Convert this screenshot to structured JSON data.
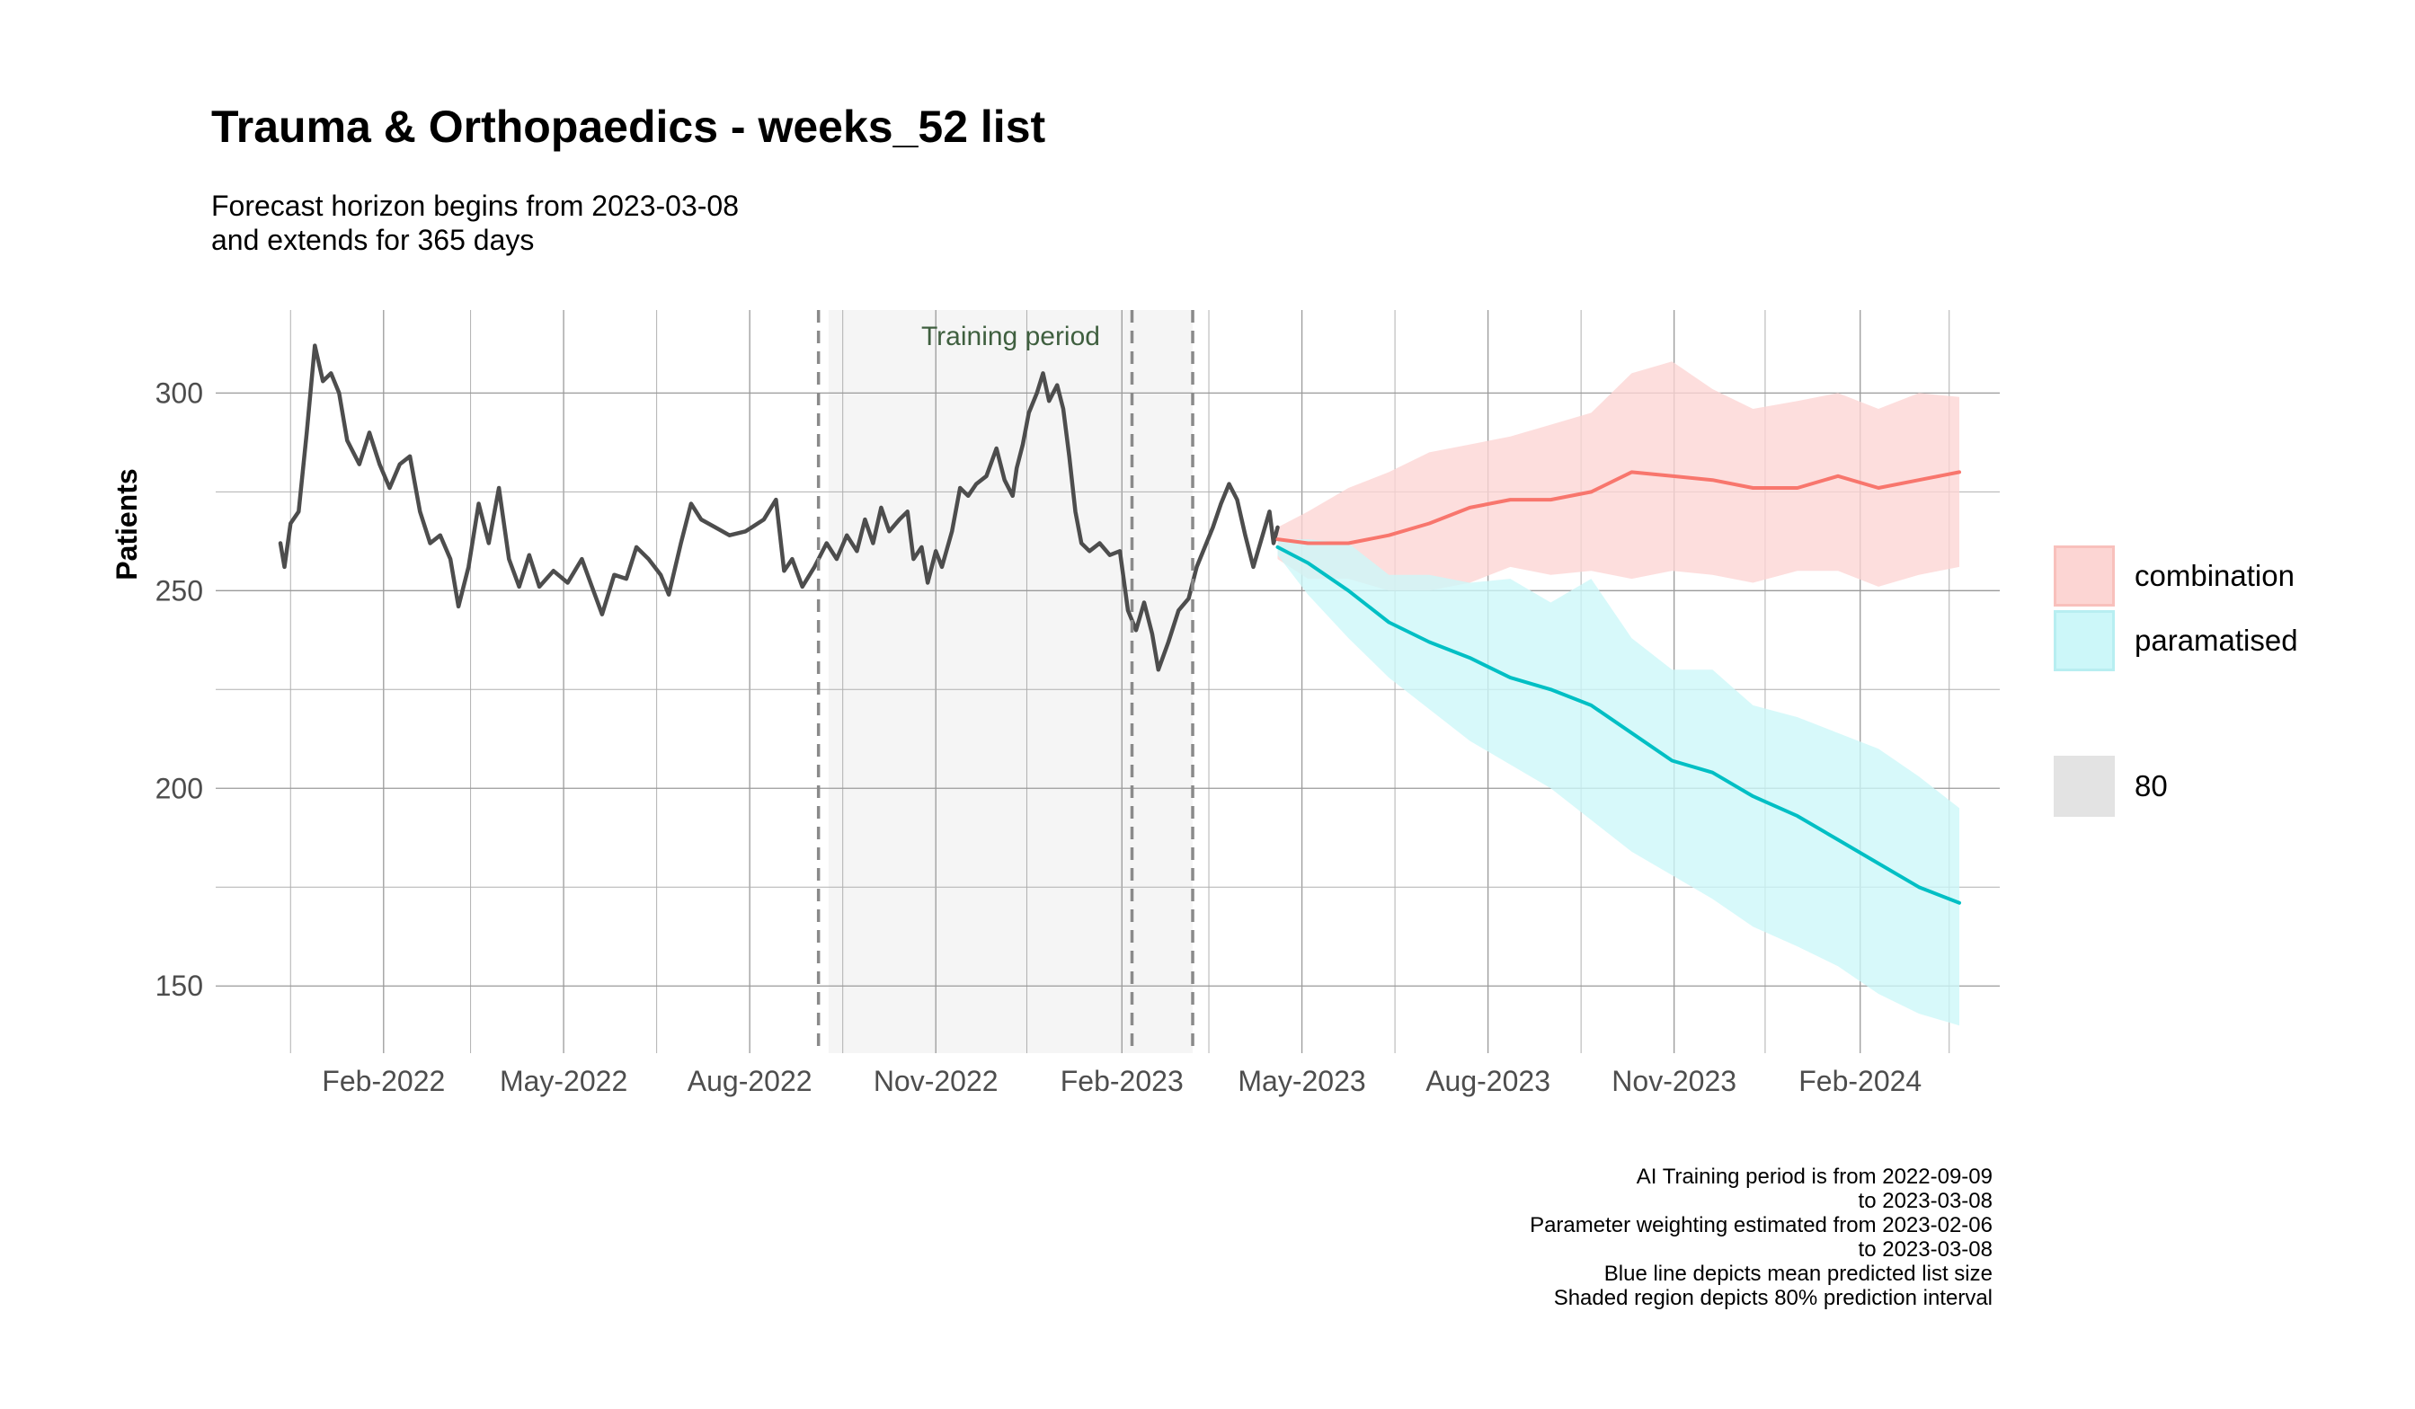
{
  "chart_data": {
    "type": "line",
    "title": "Trauma & Orthopaedics - weeks_52 list",
    "subtitle_lines": [
      "Forecast horizon begins from 2023-03-08",
      "and extends for 365 days"
    ],
    "xlabel": "",
    "ylabel": "Patients",
    "x_axis_type": "date",
    "xlim": [
      "2021-11-10",
      "2024-04-10"
    ],
    "ylim": [
      133,
      321
    ],
    "grid": true,
    "x_ticks": [
      {
        "date": "2022-02-01",
        "label": "Feb-2022"
      },
      {
        "date": "2022-05-01",
        "label": "May-2022"
      },
      {
        "date": "2022-08-01",
        "label": "Aug-2022"
      },
      {
        "date": "2022-11-01",
        "label": "Nov-2022"
      },
      {
        "date": "2023-02-01",
        "label": "Feb-2023"
      },
      {
        "date": "2023-05-01",
        "label": "May-2023"
      },
      {
        "date": "2023-08-01",
        "label": "Aug-2023"
      },
      {
        "date": "2023-11-01",
        "label": "Nov-2023"
      },
      {
        "date": "2024-02-01",
        "label": "Feb-2024"
      }
    ],
    "x_minor_gridlines": [
      "2021-12-17",
      "2022-03-16",
      "2022-06-16",
      "2022-09-16",
      "2022-12-16",
      "2023-03-16",
      "2023-06-16",
      "2023-09-16",
      "2023-12-16",
      "2024-03-16"
    ],
    "y_ticks": [
      150,
      200,
      250,
      300
    ],
    "y_minor_gridlines": [
      175,
      225,
      275
    ],
    "training_region": {
      "start": "2022-09-09",
      "end": "2023-03-08",
      "label": "Training period"
    },
    "vertical_dashed_lines": [
      "2022-09-04",
      "2023-02-06",
      "2023-03-08"
    ],
    "series": [
      {
        "name": "observed",
        "color": "#4d4d4d",
        "points": [
          [
            "2021-12-12",
            262
          ],
          [
            "2021-12-14",
            256
          ],
          [
            "2021-12-17",
            267
          ],
          [
            "2021-12-21",
            270
          ],
          [
            "2021-12-25",
            290
          ],
          [
            "2021-12-29",
            312
          ],
          [
            "2022-01-02",
            303
          ],
          [
            "2022-01-06",
            305
          ],
          [
            "2022-01-10",
            300
          ],
          [
            "2022-01-14",
            288
          ],
          [
            "2022-01-20",
            282
          ],
          [
            "2022-01-25",
            290
          ],
          [
            "2022-01-30",
            282
          ],
          [
            "2022-02-04",
            276
          ],
          [
            "2022-02-09",
            282
          ],
          [
            "2022-02-14",
            284
          ],
          [
            "2022-02-19",
            270
          ],
          [
            "2022-02-24",
            262
          ],
          [
            "2022-03-01",
            264
          ],
          [
            "2022-03-06",
            258
          ],
          [
            "2022-03-10",
            246
          ],
          [
            "2022-03-15",
            256
          ],
          [
            "2022-03-20",
            272
          ],
          [
            "2022-03-25",
            262
          ],
          [
            "2022-03-30",
            276
          ],
          [
            "2022-04-04",
            258
          ],
          [
            "2022-04-09",
            251
          ],
          [
            "2022-04-14",
            259
          ],
          [
            "2022-04-19",
            251
          ],
          [
            "2022-04-26",
            255
          ],
          [
            "2022-05-03",
            252
          ],
          [
            "2022-05-10",
            258
          ],
          [
            "2022-05-15",
            251
          ],
          [
            "2022-05-20",
            244
          ],
          [
            "2022-05-26",
            254
          ],
          [
            "2022-06-01",
            253
          ],
          [
            "2022-06-06",
            261
          ],
          [
            "2022-06-12",
            258
          ],
          [
            "2022-06-18",
            254
          ],
          [
            "2022-06-22",
            249
          ],
          [
            "2022-06-28",
            262
          ],
          [
            "2022-07-03",
            272
          ],
          [
            "2022-07-08",
            268
          ],
          [
            "2022-07-15",
            266
          ],
          [
            "2022-07-22",
            264
          ],
          [
            "2022-07-30",
            265
          ],
          [
            "2022-08-08",
            268
          ],
          [
            "2022-08-14",
            273
          ],
          [
            "2022-08-18",
            255
          ],
          [
            "2022-08-22",
            258
          ],
          [
            "2022-08-27",
            251
          ],
          [
            "2022-09-02",
            256
          ],
          [
            "2022-09-08",
            262
          ],
          [
            "2022-09-13",
            258
          ],
          [
            "2022-09-18",
            264
          ],
          [
            "2022-09-23",
            260
          ],
          [
            "2022-09-27",
            268
          ],
          [
            "2022-10-01",
            262
          ],
          [
            "2022-10-05",
            271
          ],
          [
            "2022-10-09",
            265
          ],
          [
            "2022-10-14",
            268
          ],
          [
            "2022-10-18",
            270
          ],
          [
            "2022-10-21",
            258
          ],
          [
            "2022-10-25",
            261
          ],
          [
            "2022-10-28",
            252
          ],
          [
            "2022-11-01",
            260
          ],
          [
            "2022-11-04",
            256
          ],
          [
            "2022-11-09",
            265
          ],
          [
            "2022-11-13",
            276
          ],
          [
            "2022-11-17",
            274
          ],
          [
            "2022-11-21",
            277
          ],
          [
            "2022-11-26",
            279
          ],
          [
            "2022-12-01",
            286
          ],
          [
            "2022-12-05",
            278
          ],
          [
            "2022-12-09",
            274
          ],
          [
            "2022-12-11",
            281
          ],
          [
            "2022-12-14",
            287
          ],
          [
            "2022-12-17",
            295
          ],
          [
            "2022-12-21",
            300
          ],
          [
            "2022-12-24",
            305
          ],
          [
            "2022-12-27",
            298
          ],
          [
            "2022-12-31",
            302
          ],
          [
            "2023-01-03",
            296
          ],
          [
            "2023-01-06",
            284
          ],
          [
            "2023-01-09",
            270
          ],
          [
            "2023-01-12",
            262
          ],
          [
            "2023-01-16",
            260
          ],
          [
            "2023-01-21",
            262
          ],
          [
            "2023-01-26",
            259
          ],
          [
            "2023-01-31",
            260
          ],
          [
            "2023-02-04",
            245
          ],
          [
            "2023-02-08",
            240
          ],
          [
            "2023-02-12",
            247
          ],
          [
            "2023-02-16",
            239
          ],
          [
            "2023-02-19",
            230
          ],
          [
            "2023-02-24",
            237
          ],
          [
            "2023-03-01",
            245
          ],
          [
            "2023-03-06",
            248
          ],
          [
            "2023-03-10",
            256
          ],
          [
            "2023-03-14",
            261
          ],
          [
            "2023-03-18",
            266
          ],
          [
            "2023-03-22",
            272
          ],
          [
            "2023-03-26",
            277
          ],
          [
            "2023-03-30",
            273
          ],
          [
            "2023-04-03",
            264
          ],
          [
            "2023-04-07",
            256
          ],
          [
            "2023-04-11",
            263
          ],
          [
            "2023-04-15",
            270
          ],
          [
            "2023-04-17",
            262
          ],
          [
            "2023-04-19",
            266
          ]
        ]
      },
      {
        "name": "combination",
        "color": "#f8766d",
        "band_color": "#fcd5d3",
        "mean": [
          [
            "2023-04-19",
            263
          ],
          [
            "2023-05-04",
            262
          ],
          [
            "2023-05-24",
            262
          ],
          [
            "2023-06-13",
            264
          ],
          [
            "2023-07-03",
            267
          ],
          [
            "2023-07-23",
            271
          ],
          [
            "2023-08-12",
            273
          ],
          [
            "2023-09-01",
            273
          ],
          [
            "2023-09-21",
            275
          ],
          [
            "2023-10-11",
            280
          ],
          [
            "2023-10-31",
            279
          ],
          [
            "2023-11-20",
            278
          ],
          [
            "2023-12-10",
            276
          ],
          [
            "2024-01-01",
            276
          ],
          [
            "2024-01-21",
            279
          ],
          [
            "2024-02-10",
            276
          ],
          [
            "2024-03-01",
            278
          ],
          [
            "2024-03-21",
            280
          ]
        ],
        "lower": [
          [
            "2023-04-19",
            258
          ],
          [
            "2023-05-04",
            253
          ],
          [
            "2023-05-24",
            253
          ],
          [
            "2023-06-13",
            250
          ],
          [
            "2023-07-03",
            250
          ],
          [
            "2023-07-23",
            252
          ],
          [
            "2023-08-12",
            256
          ],
          [
            "2023-09-01",
            254
          ],
          [
            "2023-09-21",
            255
          ],
          [
            "2023-10-11",
            253
          ],
          [
            "2023-10-31",
            255
          ],
          [
            "2023-11-20",
            254
          ],
          [
            "2023-12-10",
            252
          ],
          [
            "2024-01-01",
            255
          ],
          [
            "2024-01-21",
            255
          ],
          [
            "2024-02-10",
            251
          ],
          [
            "2024-03-01",
            254
          ],
          [
            "2024-03-21",
            256
          ]
        ],
        "upper": [
          [
            "2023-04-19",
            266
          ],
          [
            "2023-05-04",
            270
          ],
          [
            "2023-05-24",
            276
          ],
          [
            "2023-06-13",
            280
          ],
          [
            "2023-07-03",
            285
          ],
          [
            "2023-07-23",
            287
          ],
          [
            "2023-08-12",
            289
          ],
          [
            "2023-09-01",
            292
          ],
          [
            "2023-09-21",
            295
          ],
          [
            "2023-10-11",
            305
          ],
          [
            "2023-10-31",
            308
          ],
          [
            "2023-11-20",
            301
          ],
          [
            "2023-12-10",
            296
          ],
          [
            "2024-01-01",
            298
          ],
          [
            "2024-01-21",
            300
          ],
          [
            "2024-02-10",
            296
          ],
          [
            "2024-03-01",
            300
          ],
          [
            "2024-03-21",
            299
          ]
        ]
      },
      {
        "name": "paramatised",
        "color": "#00bfc4",
        "band_color": "#ccf7f9",
        "mean": [
          [
            "2023-04-19",
            261
          ],
          [
            "2023-05-04",
            257
          ],
          [
            "2023-05-24",
            250
          ],
          [
            "2023-06-13",
            242
          ],
          [
            "2023-07-03",
            237
          ],
          [
            "2023-07-23",
            233
          ],
          [
            "2023-08-12",
            228
          ],
          [
            "2023-09-01",
            225
          ],
          [
            "2023-09-21",
            221
          ],
          [
            "2023-10-11",
            214
          ],
          [
            "2023-10-31",
            207
          ],
          [
            "2023-11-20",
            204
          ],
          [
            "2023-12-10",
            198
          ],
          [
            "2024-01-01",
            193
          ],
          [
            "2024-01-21",
            187
          ],
          [
            "2024-02-10",
            181
          ],
          [
            "2024-03-01",
            175
          ],
          [
            "2024-03-21",
            171
          ]
        ],
        "lower": [
          [
            "2023-04-19",
            259
          ],
          [
            "2023-05-04",
            249
          ],
          [
            "2023-05-24",
            238
          ],
          [
            "2023-06-13",
            228
          ],
          [
            "2023-07-03",
            220
          ],
          [
            "2023-07-23",
            212
          ],
          [
            "2023-08-12",
            206
          ],
          [
            "2023-09-01",
            200
          ],
          [
            "2023-09-21",
            192
          ],
          [
            "2023-10-11",
            184
          ],
          [
            "2023-10-31",
            178
          ],
          [
            "2023-11-20",
            172
          ],
          [
            "2023-12-10",
            165
          ],
          [
            "2024-01-01",
            160
          ],
          [
            "2024-01-21",
            155
          ],
          [
            "2024-02-10",
            148
          ],
          [
            "2024-03-01",
            143
          ],
          [
            "2024-03-21",
            140
          ]
        ],
        "upper": [
          [
            "2023-04-19",
            263
          ],
          [
            "2023-05-04",
            263
          ],
          [
            "2023-05-24",
            262
          ],
          [
            "2023-06-13",
            254
          ],
          [
            "2023-07-03",
            254
          ],
          [
            "2023-07-23",
            252
          ],
          [
            "2023-08-12",
            253
          ],
          [
            "2023-09-01",
            247
          ],
          [
            "2023-09-21",
            253
          ],
          [
            "2023-10-11",
            238
          ],
          [
            "2023-10-31",
            230
          ],
          [
            "2023-11-20",
            230
          ],
          [
            "2023-12-10",
            221
          ],
          [
            "2024-01-01",
            218
          ],
          [
            "2024-01-21",
            214
          ],
          [
            "2024-02-10",
            210
          ],
          [
            "2024-03-01",
            203
          ],
          [
            "2024-03-21",
            195
          ]
        ]
      }
    ],
    "legend": {
      "placement": "right",
      "items": [
        {
          "label": "combination",
          "color": "#fcd5d3",
          "border": "#f8c0bc"
        },
        {
          "label": "paramatised",
          "color": "#ccf7f9",
          "border": "#b7eef1"
        }
      ],
      "level_item": {
        "label": "80",
        "color": "#e3e3e3"
      }
    },
    "caption_lines": [
      "AI Training period is from 2022-09-09",
      "to 2023-03-08",
      "Parameter weighting estimated from 2023-02-06",
      "to 2023-03-08",
      "Blue line depicts mean predicted list size",
      "Shaded region depicts 80% prediction interval"
    ]
  }
}
